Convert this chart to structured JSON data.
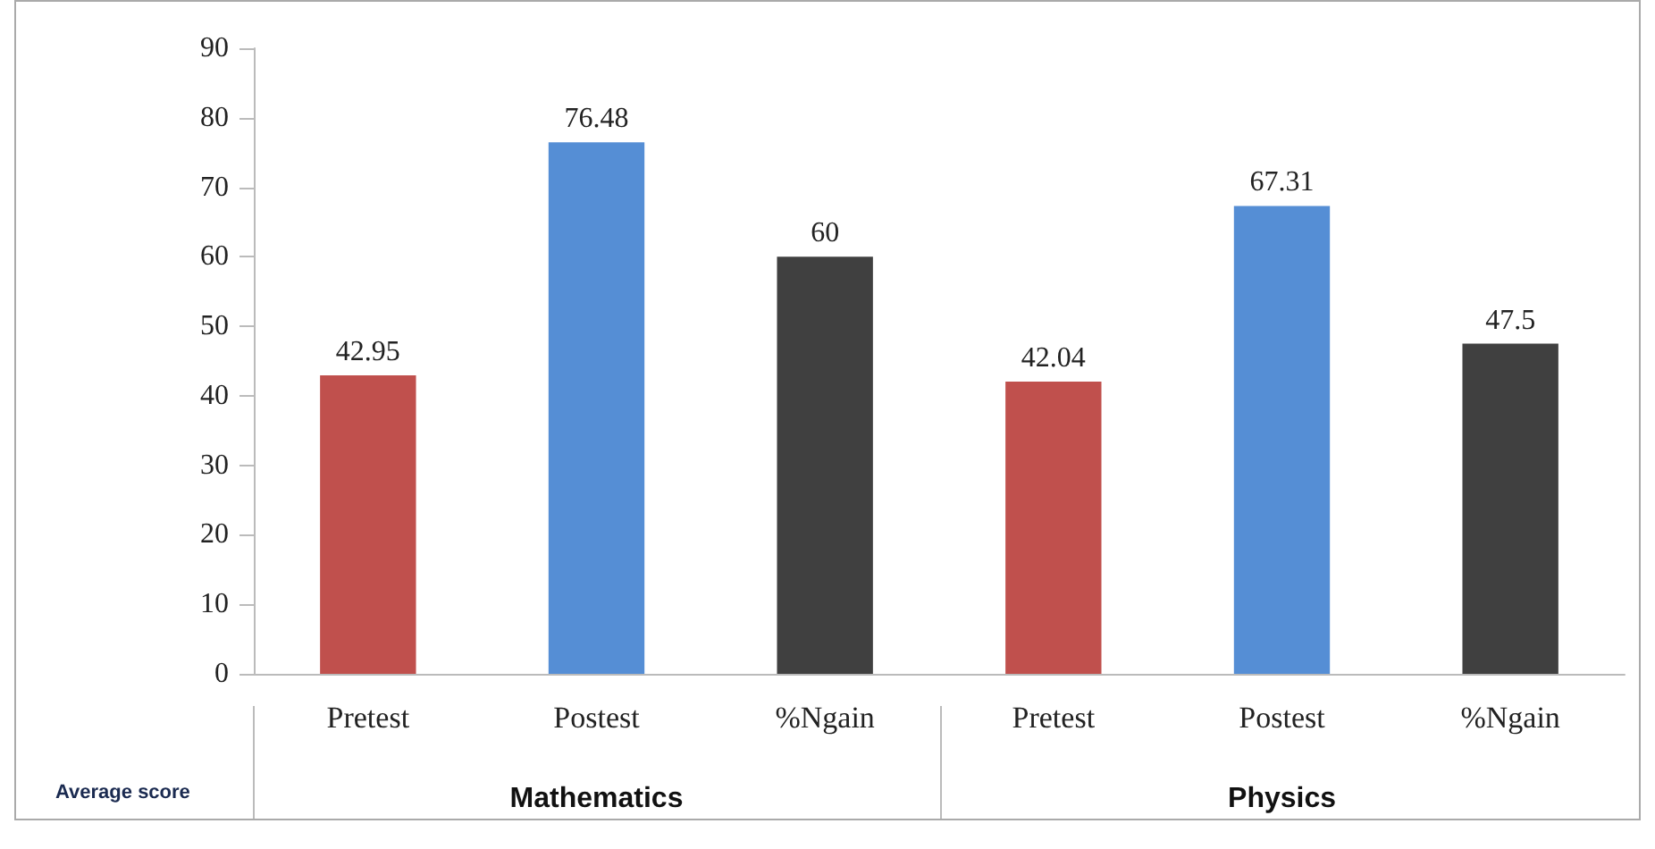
{
  "chart_data": {
    "type": "bar",
    "categories": [
      "Pretest",
      "Postest",
      "%Ngain",
      "Pretest",
      "Postest",
      "%Ngain"
    ],
    "values": [
      42.95,
      76.48,
      60,
      42.04,
      67.31,
      47.5
    ],
    "colors": [
      "#c0504d",
      "#558ed5",
      "#404040",
      "#c0504d",
      "#558ed5",
      "#404040"
    ],
    "ylim": [
      0,
      90
    ],
    "yticks": [
      0,
      10,
      20,
      30,
      40,
      50,
      60,
      70,
      80,
      90
    ],
    "grid": false,
    "data_labels": true,
    "annotations": [
      "Average score",
      "Mathematics",
      "Physics"
    ]
  }
}
